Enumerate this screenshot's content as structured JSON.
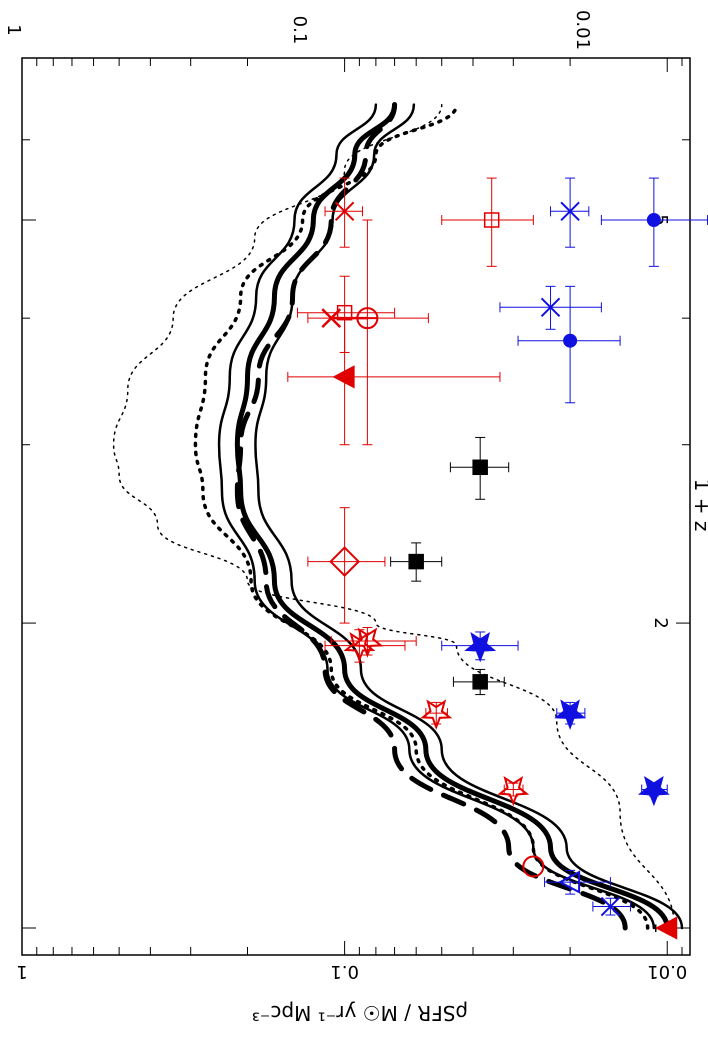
{
  "chart_data": {
    "type": "scatter",
    "title": "",
    "orientation_note": "rotated",
    "xlabel": "1 + z",
    "ylabel": "ρSFR / M☉ yr⁻¹ Mpc⁻³",
    "x_scale": "log",
    "y_scale": "log",
    "xlim": [
      1,
      6.6
    ],
    "ylim": [
      0.0085,
      1
    ],
    "x_ticks": [
      {
        "value": 1,
        "label": "1"
      },
      {
        "value": 2,
        "label": "2"
      },
      {
        "value": 5,
        "label": "5"
      }
    ],
    "y_ticks": [
      {
        "value": 1,
        "label": "1"
      },
      {
        "value": 0.1,
        "label": "0.1"
      },
      {
        "value": 0.01,
        "label": "0.01"
      }
    ],
    "curves": [
      {
        "style": "solid-thick",
        "x": [
          1.0,
          1.2,
          1.5,
          1.8,
          2.2,
          2.7,
          3.0,
          3.5,
          4.2,
          5.0,
          5.8,
          6.5
        ],
        "y": [
          0.01,
          0.023,
          0.056,
          0.1,
          0.165,
          0.21,
          0.215,
          0.2,
          0.165,
          0.125,
          0.093,
          0.07
        ]
      },
      {
        "style": "solid",
        "x": [
          1.0,
          1.2,
          1.5,
          1.8,
          2.2,
          2.7,
          3.0,
          3.5,
          4.2,
          5.0,
          5.8,
          6.5
        ],
        "y": [
          0.011,
          0.026,
          0.063,
          0.113,
          0.19,
          0.24,
          0.245,
          0.227,
          0.188,
          0.143,
          0.106,
          0.08
        ]
      },
      {
        "style": "solid",
        "x": [
          1.0,
          1.2,
          1.5,
          1.8,
          2.2,
          2.7,
          3.0,
          3.5,
          4.2,
          5.0,
          5.8,
          6.5
        ],
        "y": [
          0.009,
          0.0205,
          0.05,
          0.089,
          0.146,
          0.185,
          0.189,
          0.175,
          0.145,
          0.109,
          0.081,
          0.061
        ]
      },
      {
        "style": "dashed-thick",
        "x": [
          1.0,
          1.2,
          1.5,
          1.8,
          2.2,
          2.7,
          3.0,
          3.5,
          4.2,
          5.0,
          5.8,
          6.5
        ],
        "y": [
          0.0135,
          0.031,
          0.07,
          0.115,
          0.175,
          0.215,
          0.21,
          0.185,
          0.145,
          0.11,
          0.086,
          0.07
        ]
      },
      {
        "style": "dotted-thick",
        "x": [
          1.0,
          1.2,
          1.5,
          1.8,
          2.2,
          2.7,
          3.0,
          3.5,
          4.2,
          5.0,
          5.8,
          6.5
        ],
        "y": [
          0.0115,
          0.026,
          0.06,
          0.11,
          0.195,
          0.275,
          0.29,
          0.27,
          0.21,
          0.135,
          0.08,
          0.045
        ]
      },
      {
        "style": "dotted-thin",
        "x": [
          1.0,
          1.3,
          1.6,
          1.9,
          2.0,
          2.2,
          2.5,
          2.8,
          3.0,
          3.4,
          4.0,
          4.8,
          5.6,
          6.5
        ],
        "y": [
          0.0095,
          0.014,
          0.022,
          0.045,
          0.08,
          0.2,
          0.38,
          0.5,
          0.52,
          0.47,
          0.34,
          0.19,
          0.1,
          0.05
        ]
      }
    ],
    "points": [
      {
        "marker": "triangle-filled",
        "color": "#e00000",
        "x": 1.0,
        "y": 0.01
      },
      {
        "marker": "x",
        "color": "#1010e0",
        "x": 1.05,
        "y": 0.015,
        "xerr": 0.02,
        "yerr": [
          0.013,
          0.017
        ]
      },
      {
        "marker": "triangle-open",
        "color": "#1010e0",
        "x": 1.11,
        "y": 0.02,
        "xerr": 0.03,
        "yerr": [
          0.015,
          0.024
        ]
      },
      {
        "marker": "circle-open",
        "color": "#e00000",
        "x": 1.15,
        "y": 0.026
      },
      {
        "marker": "star-open",
        "color": "#e00000",
        "x": 1.37,
        "y": 0.03,
        "xerr": 0.02,
        "yerr": [
          0.028,
          0.032
        ]
      },
      {
        "marker": "star-filled",
        "color": "#1010e0",
        "x": 1.37,
        "y": 0.011,
        "xerr": 0.02,
        "yerr": [
          0.01,
          0.012
        ]
      },
      {
        "marker": "star-open",
        "color": "#e00000",
        "x": 1.63,
        "y": 0.052,
        "xerr": 0.04,
        "yerr": [
          0.048,
          0.056
        ]
      },
      {
        "marker": "star-filled",
        "color": "#1010e0",
        "x": 1.63,
        "y": 0.02,
        "xerr": 0.04,
        "yerr": [
          0.018,
          0.022
        ]
      },
      {
        "marker": "square-filled",
        "color": "#000000",
        "x": 1.75,
        "y": 0.038,
        "xerr": 0.05,
        "yerr": [
          0.032,
          0.046
        ]
      },
      {
        "marker": "star-filled",
        "color": "#1010e0",
        "x": 1.9,
        "y": 0.038,
        "xerr": 0.06,
        "yerr": [
          0.029,
          0.05
        ]
      },
      {
        "marker": "star-open",
        "color": "#e00000",
        "x": 1.9,
        "y": 0.09,
        "xerr": 0.07,
        "yerr": [
          0.065,
          0.115
        ]
      },
      {
        "marker": "star-open",
        "color": "#e00000",
        "x": 1.92,
        "y": 0.085,
        "xerr": 0.06,
        "yerr": [
          0.06,
          0.11
        ]
      },
      {
        "marker": "diamond-open",
        "color": "#e00000",
        "x": 2.3,
        "y": 0.1,
        "xerr": 0.3,
        "yerr": [
          0.075,
          0.13
        ]
      },
      {
        "marker": "square-filled",
        "color": "#000000",
        "x": 2.3,
        "y": 0.06,
        "xerr": 0.1,
        "yerr": [
          0.05,
          0.072
        ]
      },
      {
        "marker": "square-filled",
        "color": "#000000",
        "x": 2.85,
        "y": 0.038,
        "xerr": 0.2,
        "yerr": [
          0.031,
          0.047
        ]
      },
      {
        "marker": "triangle-filled",
        "color": "#e00000",
        "x": 3.5,
        "y": 0.1,
        "xerr": 0.5,
        "yerr": [
          0.033,
          0.15
        ]
      },
      {
        "marker": "square-open",
        "color": "#e00000",
        "x": 4.05,
        "y": 0.1,
        "xerr": 0.35,
        "yerr": [
          0.07,
          0.14
        ]
      },
      {
        "marker": "circle-open",
        "color": "#e00000",
        "x": 4.0,
        "y": 0.085,
        "xerr": 1.0,
        "yerr": [
          0.055,
          0.13
        ]
      },
      {
        "marker": "upper-limit-x",
        "color": "#e00000",
        "x": 4.0,
        "y": 0.11,
        "arrow_to": 0.085
      },
      {
        "marker": "filled-circle",
        "color": "#1010e0",
        "x": 3.8,
        "y": 0.02,
        "xerr": 0.5,
        "yerr": [
          0.014,
          0.029
        ]
      },
      {
        "marker": "x",
        "color": "#1010e0",
        "x": 4.1,
        "y": 0.023,
        "xerr": 0.2,
        "yerr": [
          0.016,
          0.033
        ]
      },
      {
        "marker": "x",
        "color": "#e00000",
        "x": 5.1,
        "y": 0.1,
        "xerr": 0.4,
        "yerr": [
          0.088,
          0.115
        ]
      },
      {
        "marker": "x",
        "color": "#1010e0",
        "x": 5.1,
        "y": 0.02,
        "xerr": 0.4,
        "yerr": [
          0.0175,
          0.023
        ]
      },
      {
        "marker": "square-open",
        "color": "#e00000",
        "x": 5.0,
        "y": 0.035,
        "xerr": 0.5,
        "yerr": [
          0.026,
          0.05
        ]
      },
      {
        "marker": "filled-circle",
        "color": "#1010e0",
        "x": 5.0,
        "y": 0.011,
        "xerr": 0.5,
        "yerr": [
          0.0075,
          0.016
        ]
      }
    ],
    "top_axis_labels": [
      {
        "value_y": 1,
        "label": "1"
      },
      {
        "value_y": 0.1,
        "label": "0.1"
      },
      {
        "value_y": 0.01,
        "label": "0.01"
      }
    ]
  }
}
